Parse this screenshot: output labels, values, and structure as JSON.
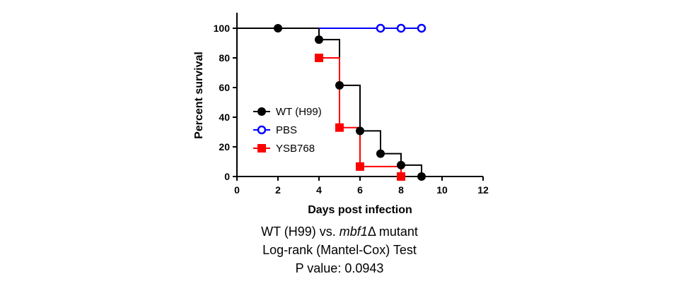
{
  "chart_data": {
    "type": "line",
    "subtype": "kaplan-meier step survival curve",
    "xlabel": "Days post infection",
    "ylabel": "Percent survival",
    "xlim": [
      0,
      12
    ],
    "ylim": [
      0,
      100
    ],
    "xticks": [
      "0",
      "2",
      "4",
      "6",
      "8",
      "10",
      "12"
    ],
    "yticks": [
      "0",
      "20",
      "40",
      "60",
      "80",
      "100"
    ],
    "grid": false,
    "legend_position": "left-middle",
    "series": [
      {
        "name": "WT (H99)",
        "color": "#000000",
        "marker": "filled-circle",
        "x": [
          0,
          2,
          4,
          5,
          6,
          7,
          8,
          9,
          10
        ],
        "y": [
          100,
          100,
          92.3,
          61.5,
          30.8,
          15.4,
          7.7,
          0,
          0
        ],
        "marker_x": [
          2,
          4,
          5,
          6,
          7,
          8,
          9
        ],
        "marker_y": [
          100,
          92.3,
          61.5,
          30.8,
          15.4,
          7.7,
          0
        ]
      },
      {
        "name": "PBS",
        "color": "#0000ff",
        "marker": "open-circle",
        "x": [
          4,
          9
        ],
        "y": [
          100,
          100
        ],
        "marker_x": [
          7,
          8,
          9
        ],
        "marker_y": [
          100,
          100,
          100
        ]
      },
      {
        "name": "YSB768",
        "color": "#ff0000",
        "marker": "filled-square",
        "x": [
          4,
          5,
          6,
          8
        ],
        "y": [
          80,
          33,
          6.7,
          0
        ],
        "marker_x": [
          4,
          5,
          6,
          8
        ],
        "marker_y": [
          80,
          33,
          6.7,
          0
        ]
      }
    ]
  },
  "caption": {
    "line1_prefix": "WT (H99) vs. ",
    "line1_gene": "mbf1",
    "line1_suffix": "Δ mutant",
    "line2": "Log-rank (Mantel-Cox) Test",
    "line3": "P value: 0.0943"
  }
}
